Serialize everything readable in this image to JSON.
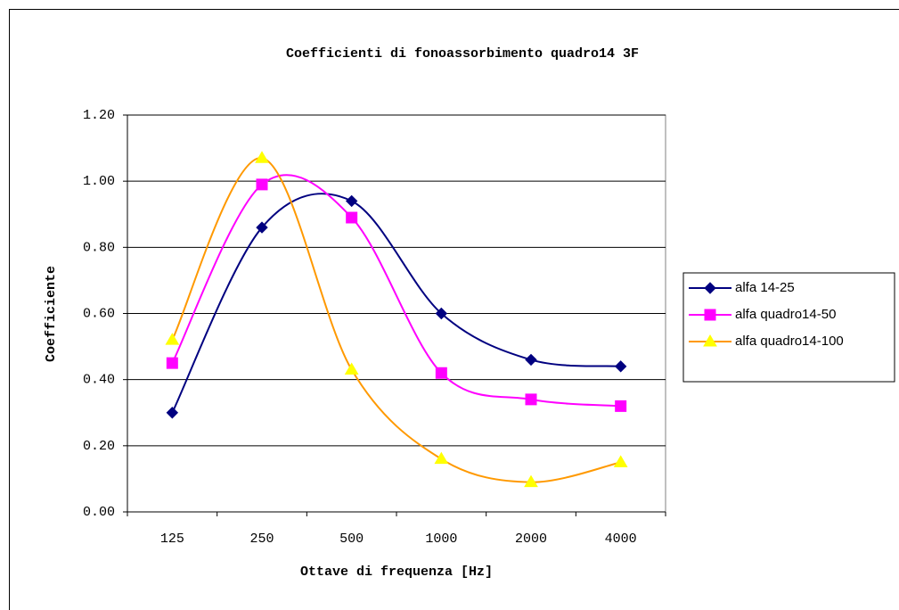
{
  "chart_data": {
    "type": "line",
    "title": "Coefficienti di fonoassorbimento quadro14 3F",
    "x_label": "Ottave di frequenza [Hz]",
    "y_label": "Coefficiente",
    "categories": [
      "125",
      "250",
      "500",
      "1000",
      "2000",
      "4000"
    ],
    "series": [
      {
        "name": "alfa 14-25",
        "color": "#000080",
        "marker_color": "#000080",
        "marker": "diamond",
        "values": [
          0.3,
          0.86,
          0.94,
          0.6,
          0.46,
          0.44
        ]
      },
      {
        "name": "alfa quadro14-50",
        "color": "#ff00ff",
        "marker_color": "#ff00ff",
        "marker": "square",
        "values": [
          0.45,
          0.99,
          0.89,
          0.42,
          0.34,
          0.32
        ]
      },
      {
        "name": "alfa quadro14-100",
        "color": "#ff9900",
        "marker_color": "#ffff00",
        "marker": "triangle",
        "values": [
          0.52,
          1.07,
          0.43,
          0.16,
          0.09,
          0.15
        ]
      }
    ],
    "smooth": true,
    "ylim": [
      0,
      1.2
    ],
    "yticks": [
      {
        "value": 0,
        "label": "0.00"
      },
      {
        "value": 0.2,
        "label": "0.20"
      },
      {
        "value": 0.4,
        "label": "0.40"
      },
      {
        "value": 0.6,
        "label": "0.60"
      },
      {
        "value": 0.8,
        "label": "0.80"
      },
      {
        "value": 1,
        "label": "1.00"
      },
      {
        "value": 1.2,
        "label": "1.20"
      }
    ],
    "grid": true,
    "legend": "right"
  }
}
